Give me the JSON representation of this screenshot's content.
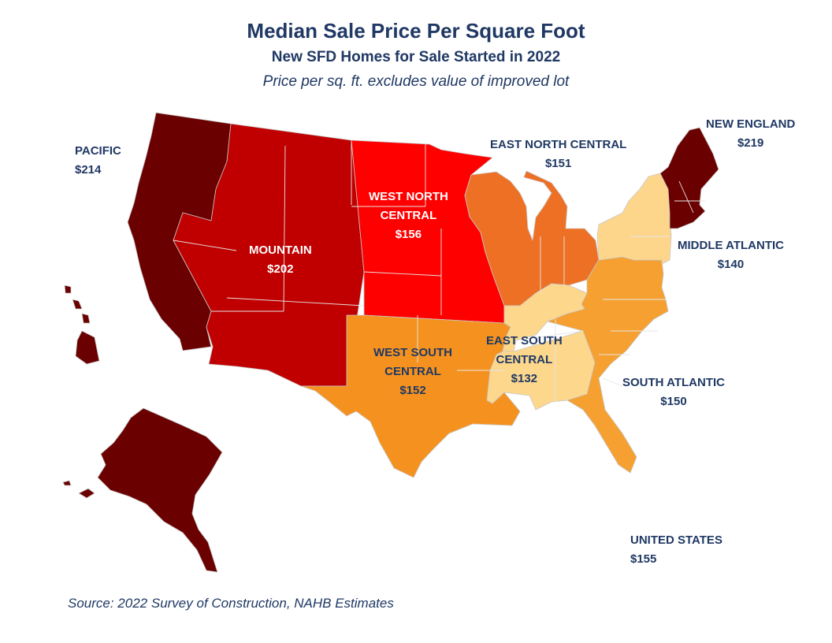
{
  "title": "Median Sale Price Per Square Foot",
  "subtitle": "New SFD Homes for Sale Started in 2022",
  "note": "Price per sq. ft. excludes value of improved lot",
  "source": "Source: 2022 Survey of Construction, NAHB Estimates",
  "colors": {
    "pacific": "#6b0000",
    "new_england": "#6b0000",
    "mountain": "#c00000",
    "west_north_central": "#ff0000",
    "east_north_central": "#ee7024",
    "south_atlantic": "#f5a030",
    "west_south_central": "#f5921f",
    "east_south_central": "#fdd78c",
    "middle_atlantic": "#fed68b",
    "label_dark": "#1f3864",
    "label_light": "#ffffff"
  },
  "regions": {
    "pacific": {
      "name": "PACIFIC",
      "value": "$214"
    },
    "mountain": {
      "name": "MOUNTAIN",
      "value": "$202"
    },
    "west_north_central": {
      "name_line1": "WEST NORTH",
      "name_line2": "CENTRAL",
      "value": "$156"
    },
    "east_north_central": {
      "name": "EAST NORTH CENTRAL",
      "value": "$151"
    },
    "new_england": {
      "name": "NEW ENGLAND",
      "value": "$219"
    },
    "middle_atlantic": {
      "name": "MIDDLE ATLANTIC",
      "value": "$140"
    },
    "south_atlantic": {
      "name": "SOUTH ATLANTIC",
      "value": "$150"
    },
    "east_south_central": {
      "name_line1": "EAST SOUTH",
      "name_line2": "CENTRAL",
      "value": "$132"
    },
    "west_south_central": {
      "name_line1": "WEST SOUTH",
      "name_line2": "CENTRAL",
      "value": "$152"
    },
    "united_states": {
      "name": "UNITED STATES",
      "value": "$155"
    }
  }
}
